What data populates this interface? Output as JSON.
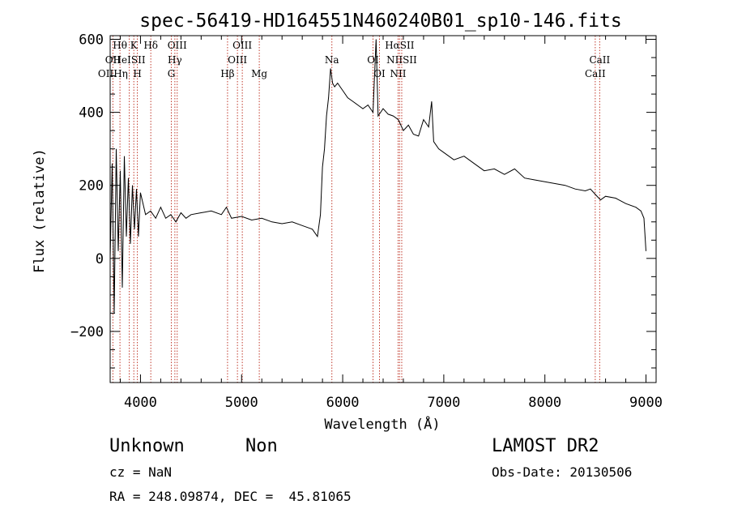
{
  "chart_data": {
    "type": "line",
    "title": "spec-56419-HD164551N460240B01_sp10-146.fits",
    "xlabel": "Wavelength (Å)",
    "ylabel": "Flux (relative)",
    "xlim": [
      3700,
      9100
    ],
    "ylim": [
      -340,
      610
    ],
    "x_ticks": [
      4000,
      5000,
      6000,
      7000,
      8000,
      9000
    ],
    "y_ticks": [
      -200,
      0,
      200,
      400,
      600
    ],
    "grid": false,
    "series": [
      {
        "x": [
          3700,
          3720,
          3740,
          3760,
          3780,
          3800,
          3820,
          3840,
          3860,
          3880,
          3900,
          3920,
          3940,
          3960,
          3980,
          4000,
          4050,
          4100,
          4150,
          4200,
          4250,
          4300,
          4350,
          4400,
          4450,
          4500,
          4600,
          4700,
          4800,
          4850,
          4900,
          5000,
          5100,
          5200,
          5300,
          5400,
          5500,
          5600,
          5700,
          5750,
          5780,
          5800,
          5820,
          5840,
          5860,
          5880,
          5900,
          5920,
          5950,
          6000,
          6050,
          6100,
          6150,
          6200,
          6250,
          6300,
          6330,
          6350,
          6400,
          6450,
          6500,
          6550,
          6600,
          6650,
          6700,
          6750,
          6800,
          6850,
          6880,
          6900,
          6950,
          7000,
          7100,
          7200,
          7300,
          7400,
          7500,
          7600,
          7700,
          7800,
          7900,
          8000,
          8100,
          8200,
          8300,
          8400,
          8450,
          8500,
          8550,
          8600,
          8700,
          8800,
          8900,
          8950,
          8980,
          9000
        ],
        "y": [
          0,
          260,
          -150,
          300,
          20,
          240,
          -80,
          280,
          60,
          220,
          40,
          200,
          80,
          190,
          60,
          180,
          120,
          130,
          110,
          140,
          110,
          120,
          100,
          125,
          110,
          120,
          125,
          130,
          120,
          140,
          110,
          115,
          105,
          110,
          100,
          95,
          100,
          90,
          80,
          60,
          120,
          250,
          300,
          390,
          440,
          520,
          480,
          470,
          480,
          460,
          440,
          430,
          420,
          410,
          420,
          400,
          600,
          390,
          410,
          395,
          390,
          380,
          350,
          365,
          340,
          335,
          380,
          360,
          430,
          320,
          300,
          290,
          270,
          280,
          260,
          240,
          245,
          230,
          245,
          220,
          215,
          210,
          205,
          200,
          190,
          185,
          190,
          175,
          160,
          170,
          165,
          150,
          140,
          130,
          110,
          20
        ]
      }
    ],
    "line_markers": [
      {
        "label": "Hθ",
        "x": 3797,
        "row": 0
      },
      {
        "label": "K",
        "x": 3934,
        "row": 0
      },
      {
        "label": "Hδ",
        "x": 4102,
        "row": 0
      },
      {
        "label": "OIII",
        "x": 4363,
        "row": 0
      },
      {
        "label": "OIII",
        "x": 5007,
        "row": 0
      },
      {
        "label": "OI",
        "x": 6300,
        "row": 1
      },
      {
        "label": "HαSII",
        "x": 6563,
        "row": 0
      },
      {
        "label": "OII",
        "x": 3727,
        "row": 1
      },
      {
        "label": "HeISII",
        "x": 3889,
        "row": 1
      },
      {
        "label": "Hγ",
        "x": 4340,
        "row": 1
      },
      {
        "label": "OIII",
        "x": 4959,
        "row": 1
      },
      {
        "label": "Na",
        "x": 5893,
        "row": 1
      },
      {
        "label": "NIISII",
        "x": 6584,
        "row": 1
      },
      {
        "label": "CaII",
        "x": 8542,
        "row": 1
      },
      {
        "label": "OIIHη",
        "x": 3727,
        "row": 2
      },
      {
        "label": "H",
        "x": 3969,
        "row": 2
      },
      {
        "label": "G",
        "x": 4305,
        "row": 2
      },
      {
        "label": "Hβ",
        "x": 4861,
        "row": 2
      },
      {
        "label": "Mg",
        "x": 5175,
        "row": 2
      },
      {
        "label": "OI",
        "x": 6364,
        "row": 2
      },
      {
        "label": "NII",
        "x": 6548,
        "row": 2
      },
      {
        "label": "CaII",
        "x": 8498,
        "row": 2
      }
    ],
    "marker_color": "#c0392b"
  },
  "footer": {
    "class_label": "Unknown",
    "subclass_label": "Non",
    "survey": "LAMOST DR2",
    "redshift": "cz = NaN",
    "obs_date": "Obs-Date: 20130506",
    "coords": "RA = 248.09874, DEC =  45.81065"
  }
}
